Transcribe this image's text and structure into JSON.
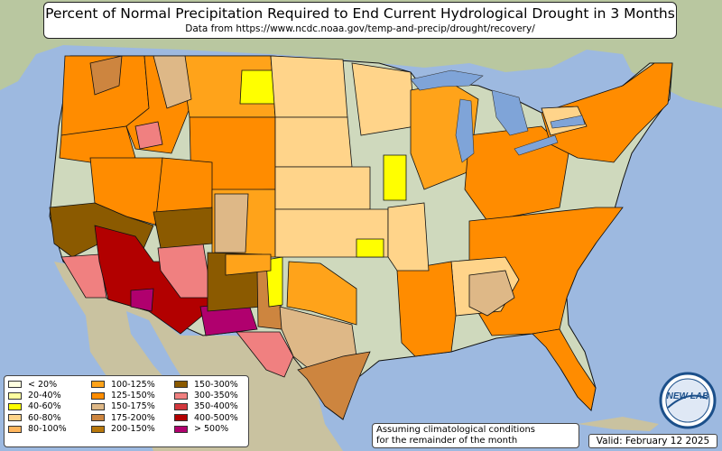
{
  "title": "Percent of Normal Precipitation Required to End Current Hydrological Drought in 3 Months",
  "subtitle": "Data from https://www.ncdc.noaa.gov/temp-and-precip/drought/recovery/",
  "legend": {
    "items": [
      {
        "label": "< 20%",
        "color": "#ffffe0"
      },
      {
        "label": "20-40%",
        "color": "#ffffa0"
      },
      {
        "label": "40-60%",
        "color": "#ffff00"
      },
      {
        "label": "60-80%",
        "color": "#ffd48a"
      },
      {
        "label": "80-100%",
        "color": "#ffb55c"
      },
      {
        "label": "100-125%",
        "color": "#ffa31a"
      },
      {
        "label": "125-150%",
        "color": "#ff8c00"
      },
      {
        "label": "150-175%",
        "color": "#deb887"
      },
      {
        "label": "175-200%",
        "color": "#cd853f"
      },
      {
        "label": "200-150%",
        "color": "#b8770b"
      },
      {
        "label": "150-300%",
        "color": "#8b5a00"
      },
      {
        "label": "300-350%",
        "color": "#f08080"
      },
      {
        "label": "350-400%",
        "color": "#d2373c"
      },
      {
        "label": "400-500%",
        "color": "#b20000"
      },
      {
        "label": "> 500%",
        "color": "#b0006e"
      }
    ]
  },
  "note": {
    "line1": "Assuming climatological conditions",
    "line2": "for the remainder of the month"
  },
  "valid": "Valid: February 12 2025",
  "logo_text": "NEW LAB",
  "colors": {
    "ocean": "#9db9e0",
    "land": "#c9d6b4",
    "lakes": "#7fa4d8",
    "borders": "#111111"
  }
}
